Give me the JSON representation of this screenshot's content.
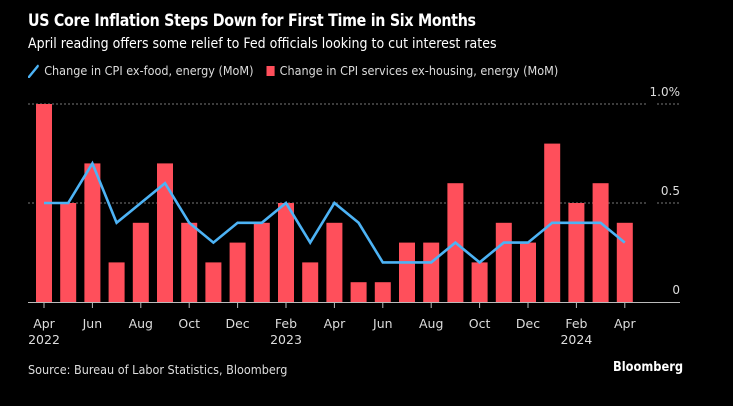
{
  "header": {
    "title": "US Core Inflation Steps Down for First Time in Six Months",
    "subtitle": "April reading offers some relief to Fed officials looking to cut interest rates"
  },
  "legend": {
    "items": [
      {
        "label": "Change in CPI ex-food, energy (MoM)",
        "icon": "line-icon",
        "color": "#4db3f5"
      },
      {
        "label": "Change in CPI services ex-housing, energy (MoM)",
        "icon": "bar-icon",
        "color": "#ff4f5b"
      }
    ]
  },
  "footer": {
    "source": "Source: Bureau of Labor Statistics, Bloomberg",
    "brand": "Bloomberg"
  },
  "chart_data": {
    "type": "bar+line",
    "title": "US Core Inflation Steps Down for First Time in Six Months",
    "subtitle": "April reading offers some relief to Fed officials looking to cut interest rates",
    "xlabel": "",
    "ylabel": "",
    "ylim": [
      0,
      1.0
    ],
    "yticks": [
      {
        "value": 0,
        "label": "0"
      },
      {
        "value": 0.5,
        "label": "0.5"
      },
      {
        "value": 1.0,
        "label": "1.0%"
      }
    ],
    "grid": "horizontal dotted",
    "legend_position": "top-left",
    "categories": [
      "Apr 2022",
      "May 2022",
      "Jun 2022",
      "Jul 2022",
      "Aug 2022",
      "Sep 2022",
      "Oct 2022",
      "Nov 2022",
      "Dec 2022",
      "Jan 2023",
      "Feb 2023",
      "Mar 2023",
      "Apr 2023",
      "May 2023",
      "Jun 2023",
      "Jul 2023",
      "Aug 2023",
      "Sep 2023",
      "Oct 2023",
      "Nov 2023",
      "Dec 2023",
      "Jan 2024",
      "Feb 2024",
      "Mar 2024",
      "Apr 2024"
    ],
    "xticks": [
      {
        "index": 0,
        "label": "Apr",
        "year": "2022"
      },
      {
        "index": 2,
        "label": "Jun",
        "year": ""
      },
      {
        "index": 4,
        "label": "Aug",
        "year": ""
      },
      {
        "index": 6,
        "label": "Oct",
        "year": ""
      },
      {
        "index": 8,
        "label": "Dec",
        "year": ""
      },
      {
        "index": 10,
        "label": "Feb",
        "year": "2023"
      },
      {
        "index": 12,
        "label": "Apr",
        "year": ""
      },
      {
        "index": 14,
        "label": "Jun",
        "year": ""
      },
      {
        "index": 16,
        "label": "Aug",
        "year": ""
      },
      {
        "index": 18,
        "label": "Oct",
        "year": ""
      },
      {
        "index": 20,
        "label": "Dec",
        "year": ""
      },
      {
        "index": 22,
        "label": "Feb",
        "year": "2024"
      },
      {
        "index": 24,
        "label": "Apr",
        "year": ""
      }
    ],
    "series": [
      {
        "name": "Change in CPI services ex-housing, energy (MoM)",
        "type": "bar",
        "color": "#ff4f5b",
        "values": [
          1.0,
          0.5,
          0.7,
          0.2,
          0.4,
          0.7,
          0.4,
          0.2,
          0.3,
          0.4,
          0.5,
          0.2,
          0.4,
          0.1,
          0.1,
          0.3,
          0.3,
          0.6,
          0.2,
          0.4,
          0.3,
          0.8,
          0.5,
          0.6,
          0.4
        ]
      },
      {
        "name": "Change in CPI ex-food, energy (MoM)",
        "type": "line",
        "color": "#4db3f5",
        "values": [
          0.5,
          0.5,
          0.7,
          0.4,
          0.5,
          0.6,
          0.4,
          0.3,
          0.4,
          0.4,
          0.5,
          0.3,
          0.5,
          0.4,
          0.2,
          0.2,
          0.2,
          0.3,
          0.2,
          0.3,
          0.3,
          0.4,
          0.4,
          0.4,
          0.3
        ]
      }
    ]
  }
}
